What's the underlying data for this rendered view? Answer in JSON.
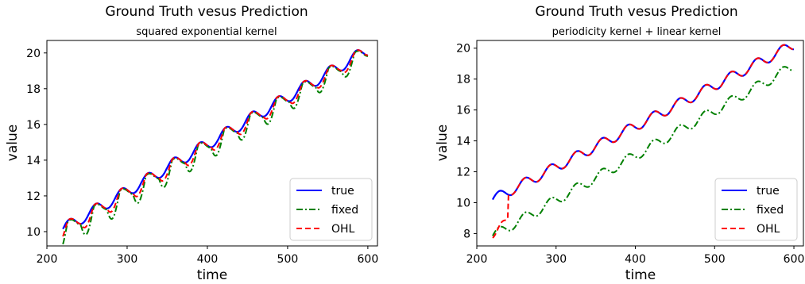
{
  "chart_data": [
    {
      "type": "line",
      "title": "Ground Truth vesus Prediction",
      "subtitle": "squared exponential kernel",
      "xlabel": "time",
      "ylabel": "value",
      "xlim": [
        200,
        612
      ],
      "ylim": [
        9.2,
        20.7
      ],
      "xticks": [
        200,
        300,
        400,
        500,
        600
      ],
      "yticks": [
        10,
        12,
        14,
        16,
        18,
        20
      ],
      "legend": "lower-right",
      "series": [
        {
          "name": "true",
          "color": "#0000ff",
          "style": "solid"
        },
        {
          "name": "fixed",
          "color": "#008000",
          "style": "dashdot"
        },
        {
          "name": "OHL",
          "color": "#ff0000",
          "style": "dashed"
        }
      ],
      "x_start": 220,
      "x_end": 600,
      "period": 32.5,
      "amplitude": 0.33,
      "true_start": 10.15,
      "true_slope": 0.0264,
      "fixed_offset": -0.55,
      "ohl_offset": -0.25
    },
    {
      "type": "line",
      "title": "Ground Truth vesus Prediction",
      "subtitle": "periodicity kernel + linear kernel",
      "xlabel": "time",
      "ylabel": "value",
      "xlim": [
        200,
        612
      ],
      "ylim": [
        7.2,
        20.5
      ],
      "xticks": [
        200,
        300,
        400,
        500,
        600
      ],
      "yticks": [
        8,
        10,
        12,
        14,
        16,
        18,
        20
      ],
      "legend": "lower-right",
      "series": [
        {
          "name": "true",
          "color": "#0000ff",
          "style": "solid"
        },
        {
          "name": "fixed",
          "color": "#008000",
          "style": "dashdot"
        },
        {
          "name": "OHL",
          "color": "#ff0000",
          "style": "dashed"
        }
      ],
      "x_start": 220,
      "x_end": 600,
      "period": 32.5,
      "amplitude": 0.33,
      "true_start": 10.2,
      "true_slope": 0.0264,
      "fixed_start": 7.85,
      "fixed_end": 18.85,
      "ohl_start": 7.85,
      "ohl_join_x": 240
    }
  ]
}
